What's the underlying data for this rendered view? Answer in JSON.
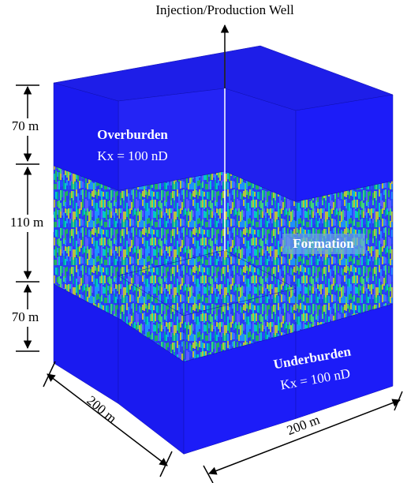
{
  "labels": {
    "well": "Injection/Production Well",
    "overburden": "Overburden",
    "overburden_k": "Kx = 100 nD",
    "formation": "Formation",
    "underburden": "Underburden",
    "underburden_k": "Kx = 100 nD"
  },
  "dimensions": {
    "top": "70 m",
    "middle": "110 m",
    "bottom": "70 m",
    "width": "200 m",
    "depth": "200 m"
  }
}
